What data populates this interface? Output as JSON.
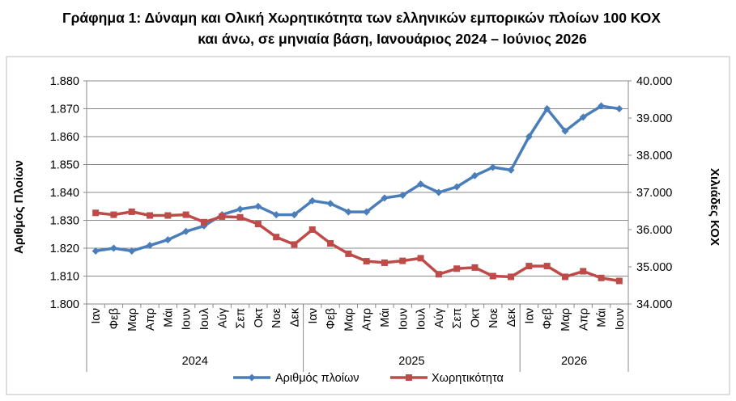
{
  "chart_data": {
    "type": "line",
    "title_lines": [
      "Γράφημα 1: Δύναμη και Ολική Χωρητικότητα των ελληνικών εμπορικών πλοίων 100 ΚΟΧ",
      "και άνω, σε μηνιαία βάση, Ιανουάριος 2024 – Ιούνιος 2026"
    ],
    "ylabel": "Αριθμός Πλοίων",
    "y2label": "Χιλιάδες ΚΟΧ",
    "ylim": [
      1800,
      1880
    ],
    "y2lim": [
      34000,
      40000
    ],
    "y_ticks": [
      "1.880",
      "1.870",
      "1.860",
      "1.850",
      "1.840",
      "1.830",
      "1.820",
      "1.810",
      "1.800"
    ],
    "y2_ticks": [
      "40.000",
      "39.000",
      "38.000",
      "37.000",
      "36.000",
      "35.000",
      "34.000"
    ],
    "categories": [
      "Ιαν",
      "Φεβ",
      "Μαρ",
      "Απρ",
      "Μάι",
      "Ιουν",
      "Ιουλ",
      "Αύγ",
      "Σεπ",
      "Οκτ",
      "Νοε",
      "Δεκ",
      "Ιαν",
      "Φεβ",
      "Μαρ",
      "Απρ",
      "Μάι",
      "Ιουν",
      "Ιουλ",
      "Αύγ",
      "Σεπ",
      "Οκτ",
      "Νοε",
      "Δεκ",
      "Ιαν",
      "Φεβ",
      "Μαρ",
      "Απρ",
      "Μάι",
      "Ιουν"
    ],
    "years": [
      {
        "label": "2024",
        "start": 0,
        "count": 12
      },
      {
        "label": "2025",
        "start": 12,
        "count": 12
      },
      {
        "label": "2026",
        "start": 24,
        "count": 6
      }
    ],
    "series": [
      {
        "name": "Αριθμός πλοίων",
        "axis": "left",
        "color": "#4a7ebb",
        "values": [
          1819,
          1820,
          1819,
          1821,
          1823,
          1826,
          1828,
          1832,
          1834,
          1835,
          1832,
          1832,
          1837,
          1836,
          1833,
          1833,
          1838,
          1839,
          1843,
          1840,
          1842,
          1846,
          1849,
          1848,
          1860,
          1870,
          1862,
          1867,
          1871,
          1870
        ]
      },
      {
        "name": "Χωρητικότητα",
        "axis": "right",
        "color": "#be4b48",
        "values": [
          36450,
          36400,
          36480,
          36380,
          36380,
          36400,
          36200,
          36350,
          36330,
          36150,
          35800,
          35600,
          36000,
          35630,
          35350,
          35150,
          35110,
          35160,
          35230,
          34800,
          34950,
          34980,
          34750,
          34730,
          35020,
          35020,
          34730,
          34880,
          34700,
          34620
        ]
      }
    ],
    "legend_position": "bottom",
    "grid": true
  }
}
